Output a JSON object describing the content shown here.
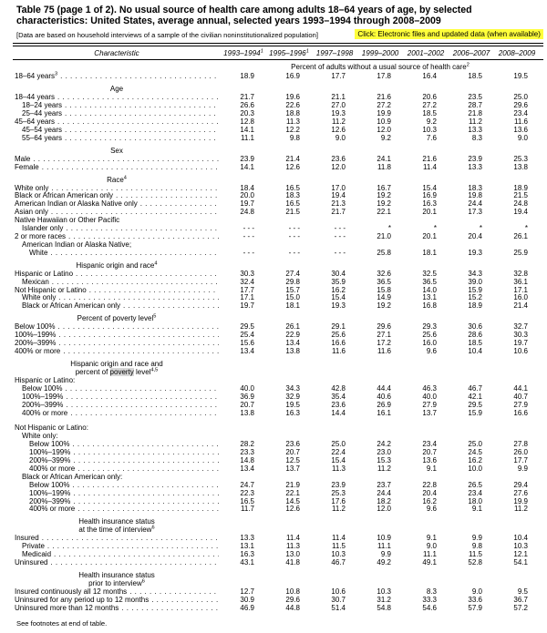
{
  "page": {
    "title_line1": "Table 75 (page 1 of 2). No usual source of health care among adults 18–64 years of age, by selected",
    "title_line2": "characteristics: United States, average annual, selected years 1993–1994 through 2008–2009",
    "bracket_note": "[Data are based on household interviews of a sample of the civilian noninstitutionalized population]",
    "click_link": "Click: Electronic files and updated data (when available)",
    "footer": "See footnotes at end of table."
  },
  "colors": {
    "link_highlight": "#ffff3b",
    "search_highlight": "#d8d8d8",
    "text": "#000000",
    "background": "#ffffff"
  },
  "table": {
    "corner_label": "Characteristic",
    "columns": [
      {
        "label": "1993–1994",
        "sup": "1"
      },
      {
        "label": "1995–1996",
        "sup": "1"
      },
      {
        "label": "1997–1998",
        "sup": ""
      },
      {
        "label": "1999–2000",
        "sup": ""
      },
      {
        "label": "2001–2002",
        "sup": ""
      },
      {
        "label": "2006–2007",
        "sup": ""
      },
      {
        "label": "2008–2009",
        "sup": ""
      }
    ],
    "spanner": {
      "text": "Percent of adults without a usual source of health care",
      "sup": "2"
    },
    "rows": [
      {
        "type": "data",
        "label": "18–64 years",
        "sup": "3",
        "indent": 0,
        "values": [
          "18.9",
          "16.9",
          "17.7",
          "17.8",
          "16.4",
          "18.5",
          "19.5"
        ]
      },
      {
        "type": "section",
        "lines": [
          {
            "text": "Age"
          }
        ]
      },
      {
        "type": "data",
        "label": "18–44 years",
        "indent": 0,
        "values": [
          "21.7",
          "19.6",
          "21.1",
          "21.6",
          "20.6",
          "23.5",
          "25.0"
        ]
      },
      {
        "type": "data",
        "label": "18–24 years",
        "indent": 1,
        "values": [
          "26.6",
          "22.6",
          "27.0",
          "27.2",
          "27.2",
          "28.7",
          "29.6"
        ]
      },
      {
        "type": "data",
        "label": "25–44 years",
        "indent": 1,
        "values": [
          "20.3",
          "18.8",
          "19.3",
          "19.9",
          "18.5",
          "21.8",
          "23.4"
        ]
      },
      {
        "type": "data",
        "label": "45–64 years",
        "indent": 0,
        "values": [
          "12.8",
          "11.3",
          "11.2",
          "10.9",
          "9.2",
          "11.2",
          "11.6"
        ]
      },
      {
        "type": "data",
        "label": "45–54 years",
        "indent": 1,
        "values": [
          "14.1",
          "12.2",
          "12.6",
          "12.0",
          "10.3",
          "13.3",
          "13.6"
        ]
      },
      {
        "type": "data",
        "label": "55–64 years",
        "indent": 1,
        "values": [
          "11.1",
          "9.8",
          "9.0",
          "9.2",
          "7.6",
          "8.3",
          "9.0"
        ]
      },
      {
        "type": "section",
        "lines": [
          {
            "text": "Sex"
          }
        ]
      },
      {
        "type": "data",
        "label": "Male",
        "indent": 0,
        "values": [
          "23.9",
          "21.4",
          "23.6",
          "24.1",
          "21.6",
          "23.9",
          "25.3"
        ]
      },
      {
        "type": "data",
        "label": "Female",
        "indent": 0,
        "values": [
          "14.1",
          "12.6",
          "12.0",
          "11.8",
          "11.4",
          "13.3",
          "13.8"
        ]
      },
      {
        "type": "section",
        "lines": [
          {
            "text": "Race",
            "sup": "4"
          }
        ]
      },
      {
        "type": "data",
        "label": "White only",
        "indent": 0,
        "values": [
          "18.4",
          "16.5",
          "17.0",
          "16.7",
          "15.4",
          "18.3",
          "18.9"
        ]
      },
      {
        "type": "data",
        "label": "Black or African American only",
        "indent": 0,
        "values": [
          "20.0",
          "18.3",
          "19.4",
          "19.2",
          "16.9",
          "19.8",
          "21.5"
        ]
      },
      {
        "type": "data",
        "label": "American Indian or Alaska Native only",
        "indent": 0,
        "values": [
          "19.7",
          "16.5",
          "21.3",
          "19.2",
          "16.3",
          "24.4",
          "24.8"
        ]
      },
      {
        "type": "data",
        "label": "Asian only",
        "indent": 0,
        "values": [
          "24.8",
          "21.5",
          "21.7",
          "22.1",
          "20.1",
          "17.3",
          "19.4"
        ]
      },
      {
        "type": "label",
        "label": "Native Hawaiian or Other Pacific",
        "indent": 0
      },
      {
        "type": "data",
        "label": "Islander only",
        "indent": 1,
        "values": [
          "- - -",
          "- - -",
          "- - -",
          "*",
          "*",
          "*",
          "*"
        ]
      },
      {
        "type": "data",
        "label": "2 or more races",
        "indent": 0,
        "values": [
          "- - -",
          "- - -",
          "- - -",
          "21.0",
          "20.1",
          "20.4",
          "26.1"
        ]
      },
      {
        "type": "label",
        "label": "American Indian or Alaska Native;",
        "indent": 1
      },
      {
        "type": "data",
        "label": "White",
        "indent": 2,
        "values": [
          "- - -",
          "- - -",
          "- - -",
          "25.8",
          "18.1",
          "19.3",
          "25.9"
        ]
      },
      {
        "type": "section",
        "lines": [
          {
            "text": "Hispanic origin and race",
            "sup": "4"
          }
        ]
      },
      {
        "type": "data",
        "label": "Hispanic or Latino",
        "indent": 0,
        "values": [
          "30.3",
          "27.4",
          "30.4",
          "32.6",
          "32.5",
          "34.3",
          "32.8"
        ]
      },
      {
        "type": "data",
        "label": "Mexican",
        "indent": 1,
        "values": [
          "32.4",
          "29.8",
          "35.9",
          "36.5",
          "36.5",
          "39.0",
          "36.1"
        ]
      },
      {
        "type": "data",
        "label": "Not Hispanic or Latino",
        "indent": 0,
        "values": [
          "17.7",
          "15.7",
          "16.2",
          "15.8",
          "14.0",
          "15.9",
          "17.1"
        ]
      },
      {
        "type": "data",
        "label": "White only",
        "indent": 1,
        "values": [
          "17.1",
          "15.0",
          "15.4",
          "14.9",
          "13.1",
          "15.2",
          "16.0"
        ]
      },
      {
        "type": "data",
        "label": "Black or African American only",
        "indent": 1,
        "values": [
          "19.7",
          "18.1",
          "19.3",
          "19.2",
          "16.8",
          "18.9",
          "21.4"
        ]
      },
      {
        "type": "section",
        "lines": [
          {
            "text": "Percent of poverty level",
            "sup": "5"
          }
        ]
      },
      {
        "type": "data",
        "label": "Below 100%",
        "indent": 0,
        "values": [
          "29.5",
          "26.1",
          "29.1",
          "29.6",
          "29.3",
          "30.6",
          "32.7"
        ]
      },
      {
        "type": "data",
        "label": "100%–199%",
        "indent": 0,
        "values": [
          "25.4",
          "22.9",
          "25.6",
          "27.1",
          "25.6",
          "28.6",
          "30.3"
        ]
      },
      {
        "type": "data",
        "label": "200%–399%",
        "indent": 0,
        "values": [
          "15.6",
          "13.4",
          "16.6",
          "17.2",
          "16.0",
          "18.5",
          "19.7"
        ]
      },
      {
        "type": "data",
        "label": "400% or more",
        "indent": 0,
        "values": [
          "13.4",
          "13.8",
          "11.6",
          "11.6",
          "9.6",
          "10.4",
          "10.6"
        ]
      },
      {
        "type": "section",
        "lines": [
          {
            "text": "Hispanic origin and race and"
          },
          {
            "text": "percent of poverty level",
            "sup": "4,5",
            "highlight": "poverty"
          }
        ]
      },
      {
        "type": "label",
        "label": "Hispanic or Latino:",
        "indent": 0
      },
      {
        "type": "data",
        "label": "Below 100%",
        "indent": 1,
        "values": [
          "40.0",
          "34.3",
          "42.8",
          "44.4",
          "46.3",
          "46.7",
          "44.1"
        ]
      },
      {
        "type": "data",
        "label": "100%–199%",
        "indent": 1,
        "values": [
          "36.9",
          "32.9",
          "35.4",
          "40.6",
          "40.0",
          "42.1",
          "40.7"
        ]
      },
      {
        "type": "data",
        "label": "200%–399%",
        "indent": 1,
        "values": [
          "20.7",
          "19.5",
          "23.6",
          "26.9",
          "27.9",
          "29.5",
          "27.9"
        ]
      },
      {
        "type": "data",
        "label": "400% or more",
        "indent": 1,
        "values": [
          "13.8",
          "16.3",
          "14.4",
          "16.1",
          "13.7",
          "15.9",
          "16.6"
        ]
      },
      {
        "type": "gap"
      },
      {
        "type": "label",
        "label": "Not Hispanic or Latino:",
        "indent": 0
      },
      {
        "type": "label",
        "label": "White only:",
        "indent": 1
      },
      {
        "type": "data",
        "label": "Below 100%",
        "indent": 2,
        "values": [
          "28.2",
          "23.6",
          "25.0",
          "24.2",
          "23.4",
          "25.0",
          "27.8"
        ]
      },
      {
        "type": "data",
        "label": "100%–199%",
        "indent": 2,
        "values": [
          "23.3",
          "20.7",
          "22.4",
          "23.0",
          "20.7",
          "24.5",
          "26.0"
        ]
      },
      {
        "type": "data",
        "label": "200%–399%",
        "indent": 2,
        "values": [
          "14.8",
          "12.5",
          "15.4",
          "15.3",
          "13.6",
          "16.2",
          "17.7"
        ]
      },
      {
        "type": "data",
        "label": "400% or more",
        "indent": 2,
        "values": [
          "13.4",
          "13.7",
          "11.3",
          "11.2",
          "9.1",
          "10.0",
          "9.9"
        ]
      },
      {
        "type": "label",
        "label": "Black or African American only:",
        "indent": 1
      },
      {
        "type": "data",
        "label": "Below 100%",
        "indent": 2,
        "values": [
          "24.7",
          "21.9",
          "23.9",
          "23.7",
          "22.8",
          "26.5",
          "29.4"
        ]
      },
      {
        "type": "data",
        "label": "100%–199%",
        "indent": 2,
        "values": [
          "22.3",
          "22.1",
          "25.3",
          "24.4",
          "20.4",
          "23.4",
          "27.6"
        ]
      },
      {
        "type": "data",
        "label": "200%–399%",
        "indent": 2,
        "values": [
          "16.5",
          "14.5",
          "17.6",
          "18.2",
          "16.2",
          "18.0",
          "19.9"
        ]
      },
      {
        "type": "data",
        "label": "400% or more",
        "indent": 2,
        "values": [
          "11.7",
          "12.6",
          "11.2",
          "12.0",
          "9.6",
          "9.1",
          "11.2"
        ]
      },
      {
        "type": "section",
        "lines": [
          {
            "text": "Health insurance status"
          },
          {
            "text": "at the time of interview",
            "sup": "6"
          }
        ]
      },
      {
        "type": "data",
        "label": "Insured",
        "indent": 0,
        "values": [
          "13.3",
          "11.4",
          "11.4",
          "10.9",
          "9.1",
          "9.9",
          "10.4"
        ]
      },
      {
        "type": "data",
        "label": "Private",
        "indent": 1,
        "values": [
          "13.1",
          "11.3",
          "11.5",
          "11.1",
          "9.0",
          "9.8",
          "10.3"
        ]
      },
      {
        "type": "data",
        "label": "Medicaid",
        "indent": 1,
        "values": [
          "16.3",
          "13.0",
          "10.3",
          "9.9",
          "11.1",
          "11.5",
          "12.1"
        ]
      },
      {
        "type": "data",
        "label": "Uninsured",
        "indent": 0,
        "values": [
          "43.1",
          "41.8",
          "46.7",
          "49.2",
          "49.1",
          "52.8",
          "54.1"
        ]
      },
      {
        "type": "section",
        "lines": [
          {
            "text": "Health insurance status"
          },
          {
            "text": "prior to interview",
            "sup": "6"
          }
        ]
      },
      {
        "type": "data",
        "label": "Insured continuously all 12 months",
        "indent": 0,
        "values": [
          "12.7",
          "10.8",
          "10.6",
          "10.3",
          "8.3",
          "9.0",
          "9.5"
        ]
      },
      {
        "type": "data",
        "label": "Uninsured for any period up to 12 months",
        "indent": 0,
        "values": [
          "30.9",
          "29.6",
          "30.7",
          "31.2",
          "33.3",
          "33.6",
          "36.7"
        ]
      },
      {
        "type": "data",
        "label": "Uninsured more than 12 months",
        "indent": 0,
        "values": [
          "46.9",
          "44.8",
          "51.4",
          "54.8",
          "54.6",
          "57.9",
          "57.2"
        ]
      }
    ]
  }
}
